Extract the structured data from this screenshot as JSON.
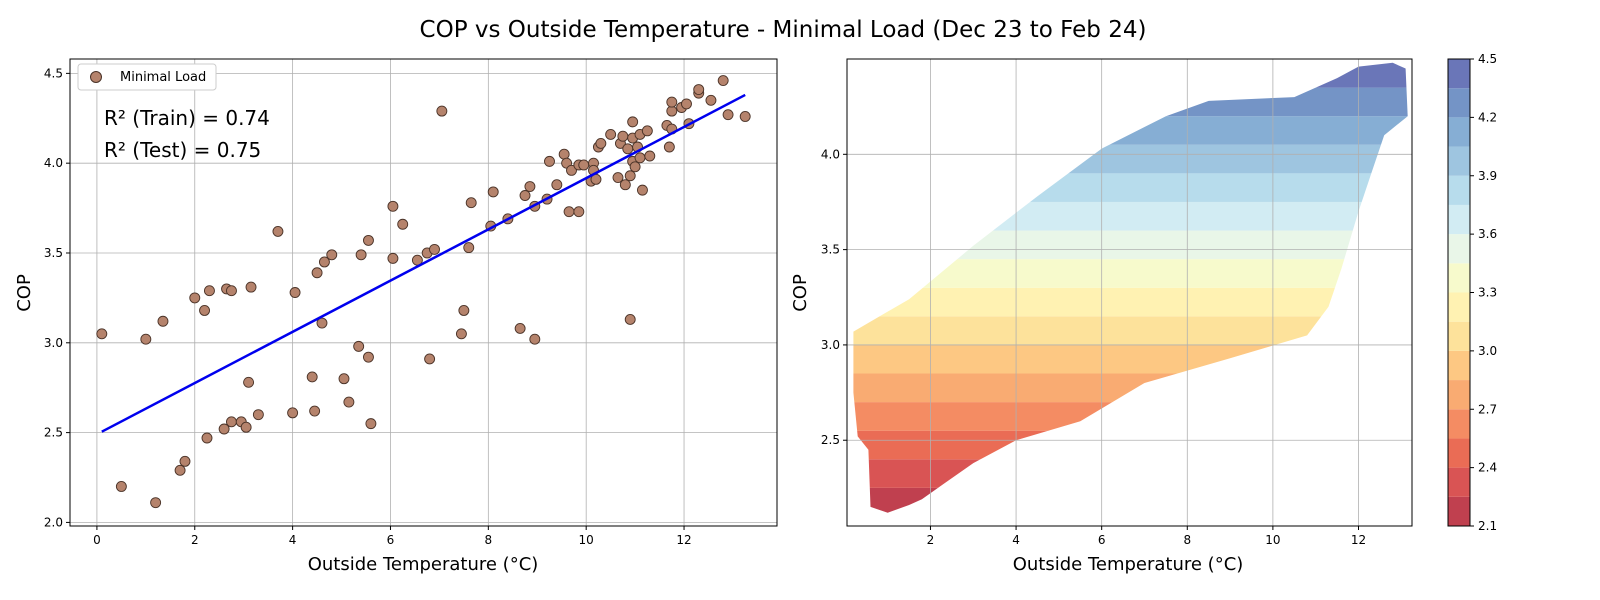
{
  "figure": {
    "title": "COP vs Outside Temperature - Minimal Load (Dec 23 to Feb 24)"
  },
  "colors": {
    "point_fill": "#b5836c",
    "point_edge": "#4a3328",
    "fit_line": "#0000ee",
    "grid": "#b0b0b0"
  },
  "annotations": {
    "r2_train": "R² (Train) = 0.74",
    "r2_test": "R² (Test) = 0.75"
  },
  "chart_data": [
    {
      "type": "scatter",
      "title": "",
      "xlabel": "Outside Temperature (°C)",
      "ylabel": "COP",
      "xlim": [
        -0.55,
        13.9
      ],
      "ylim": [
        1.98,
        4.58
      ],
      "xticks": [
        0,
        2,
        4,
        6,
        8,
        10,
        12
      ],
      "yticks": [
        2.0,
        2.5,
        3.0,
        3.5,
        4.0,
        4.5
      ],
      "grid": true,
      "legend": {
        "position": "top-left",
        "entries": [
          "Minimal Load"
        ]
      },
      "series": [
        {
          "name": "Minimal Load",
          "points": [
            [
              0.1,
              3.05
            ],
            [
              0.5,
              2.2
            ],
            [
              1.0,
              3.02
            ],
            [
              1.2,
              2.11
            ],
            [
              1.35,
              3.12
            ],
            [
              1.7,
              2.29
            ],
            [
              1.8,
              2.34
            ],
            [
              2.0,
              3.25
            ],
            [
              2.2,
              3.18
            ],
            [
              2.25,
              2.47
            ],
            [
              2.3,
              3.29
            ],
            [
              2.6,
              2.52
            ],
            [
              2.65,
              3.3
            ],
            [
              2.75,
              3.29
            ],
            [
              2.75,
              2.56
            ],
            [
              2.95,
              2.56
            ],
            [
              3.05,
              2.53
            ],
            [
              3.1,
              2.78
            ],
            [
              3.15,
              3.31
            ],
            [
              3.3,
              2.6
            ],
            [
              3.7,
              3.62
            ],
            [
              4.0,
              2.61
            ],
            [
              4.05,
              3.28
            ],
            [
              4.4,
              2.81
            ],
            [
              4.45,
              2.62
            ],
            [
              4.5,
              3.39
            ],
            [
              4.6,
              3.11
            ],
            [
              4.65,
              3.45
            ],
            [
              4.8,
              3.49
            ],
            [
              5.05,
              2.8
            ],
            [
              5.15,
              2.67
            ],
            [
              5.35,
              2.98
            ],
            [
              5.4,
              3.49
            ],
            [
              5.55,
              3.57
            ],
            [
              5.55,
              2.92
            ],
            [
              5.6,
              2.55
            ],
            [
              6.05,
              3.76
            ],
            [
              6.05,
              3.47
            ],
            [
              6.25,
              3.66
            ],
            [
              6.55,
              3.46
            ],
            [
              6.75,
              3.5
            ],
            [
              6.8,
              2.91
            ],
            [
              6.9,
              3.52
            ],
            [
              7.05,
              4.29
            ],
            [
              7.45,
              3.05
            ],
            [
              7.5,
              3.18
            ],
            [
              7.6,
              3.53
            ],
            [
              7.65,
              3.78
            ],
            [
              8.05,
              3.65
            ],
            [
              8.1,
              3.84
            ],
            [
              8.4,
              3.69
            ],
            [
              8.65,
              3.08
            ],
            [
              8.75,
              3.82
            ],
            [
              8.85,
              3.87
            ],
            [
              8.95,
              3.02
            ],
            [
              8.95,
              3.76
            ],
            [
              9.2,
              3.8
            ],
            [
              9.25,
              4.01
            ],
            [
              9.4,
              3.88
            ],
            [
              9.55,
              4.05
            ],
            [
              9.6,
              4.0
            ],
            [
              9.65,
              3.73
            ],
            [
              9.7,
              3.96
            ],
            [
              9.85,
              3.73
            ],
            [
              9.85,
              3.99
            ],
            [
              9.95,
              3.99
            ],
            [
              10.1,
              3.9
            ],
            [
              10.15,
              4.0
            ],
            [
              10.15,
              3.96
            ],
            [
              10.2,
              3.91
            ],
            [
              10.25,
              4.09
            ],
            [
              10.3,
              4.11
            ],
            [
              10.5,
              4.16
            ],
            [
              10.65,
              3.92
            ],
            [
              10.7,
              4.11
            ],
            [
              10.75,
              4.15
            ],
            [
              10.8,
              3.88
            ],
            [
              10.85,
              4.08
            ],
            [
              10.9,
              3.13
            ],
            [
              10.9,
              3.93
            ],
            [
              10.95,
              4.14
            ],
            [
              10.95,
              4.01
            ],
            [
              10.95,
              4.23
            ],
            [
              11.0,
              3.98
            ],
            [
              11.05,
              4.09
            ],
            [
              11.1,
              4.03
            ],
            [
              11.1,
              4.16
            ],
            [
              11.15,
              3.85
            ],
            [
              11.25,
              4.18
            ],
            [
              11.3,
              4.04
            ],
            [
              11.65,
              4.21
            ],
            [
              11.7,
              4.09
            ],
            [
              11.75,
              4.19
            ],
            [
              11.75,
              4.29
            ],
            [
              11.75,
              4.34
            ],
            [
              11.95,
              4.31
            ],
            [
              12.05,
              4.33
            ],
            [
              12.1,
              4.22
            ],
            [
              12.3,
              4.39
            ],
            [
              12.3,
              4.41
            ],
            [
              12.55,
              4.35
            ],
            [
              12.8,
              4.46
            ],
            [
              12.9,
              4.27
            ],
            [
              13.25,
              4.26
            ]
          ]
        },
        {
          "name": "",
          "kind": "fit-line",
          "x": [
            0.1,
            13.25
          ],
          "y": [
            2.505,
            4.38
          ]
        }
      ]
    },
    {
      "type": "heatmap",
      "title": "",
      "xlabel": "Outside Temperature (°C)",
      "ylabel": "COP",
      "xlim": [
        0.05,
        13.25
      ],
      "ylim": [
        2.05,
        4.5
      ],
      "xticks": [
        2,
        4,
        6,
        8,
        10,
        12
      ],
      "yticks": [
        2.5,
        3.0,
        3.5,
        4.0
      ],
      "grid": true,
      "colormap": "RdYlBu",
      "levels": [
        2.1,
        2.25,
        2.4,
        2.55,
        2.7,
        2.85,
        3.0,
        3.15,
        3.3,
        3.45,
        3.6,
        3.75,
        3.9,
        4.05,
        4.2,
        4.35,
        4.5
      ],
      "level_colors": [
        "#c0404f",
        "#d95454",
        "#ea6c55",
        "#f48c63",
        "#f9ab72",
        "#fdc883",
        "#fde29b",
        "#fff2b2",
        "#f7facc",
        "#e9f6e8",
        "#d2ecf3",
        "#b7dcec",
        "#9ec5e0",
        "#86aed4",
        "#7494c6",
        "#6a76b8"
      ],
      "colorbar": {
        "ticks": [
          2.1,
          2.4,
          2.7,
          3.0,
          3.3,
          3.6,
          3.9,
          4.2,
          4.5
        ],
        "tick_labels": [
          "2.1",
          "2.4",
          "2.7",
          "3.0",
          "3.3",
          "3.6",
          "3.9",
          "4.2",
          "4.5"
        ]
      },
      "region_boundary": {
        "upper": [
          [
            0.2,
            3.07
          ],
          [
            1.5,
            3.24
          ],
          [
            3.0,
            3.52
          ],
          [
            4.5,
            3.78
          ],
          [
            6.0,
            4.03
          ],
          [
            7.5,
            4.2
          ],
          [
            8.5,
            4.28
          ],
          [
            10.5,
            4.3
          ],
          [
            11.5,
            4.4
          ],
          [
            12.0,
            4.46
          ],
          [
            12.8,
            4.48
          ]
        ],
        "right": [
          [
            12.8,
            4.48
          ],
          [
            13.1,
            4.45
          ],
          [
            13.15,
            4.2
          ],
          [
            12.6,
            4.1
          ],
          [
            12.3,
            3.9
          ],
          [
            12.0,
            3.7
          ],
          [
            11.6,
            3.4
          ],
          [
            11.3,
            3.2
          ],
          [
            10.8,
            3.05
          ]
        ],
        "lower": [
          [
            10.8,
            3.05
          ],
          [
            9.0,
            2.93
          ],
          [
            7.0,
            2.8
          ],
          [
            5.5,
            2.6
          ],
          [
            4.0,
            2.5
          ],
          [
            3.0,
            2.38
          ],
          [
            2.3,
            2.27
          ],
          [
            1.8,
            2.19
          ],
          [
            1.5,
            2.16
          ],
          [
            1.0,
            2.12
          ],
          [
            0.6,
            2.15
          ]
        ],
        "left": [
          [
            0.6,
            2.15
          ],
          [
            0.55,
            2.45
          ],
          [
            0.3,
            2.52
          ],
          [
            0.2,
            2.75
          ],
          [
            0.2,
            3.07
          ]
        ]
      }
    }
  ]
}
